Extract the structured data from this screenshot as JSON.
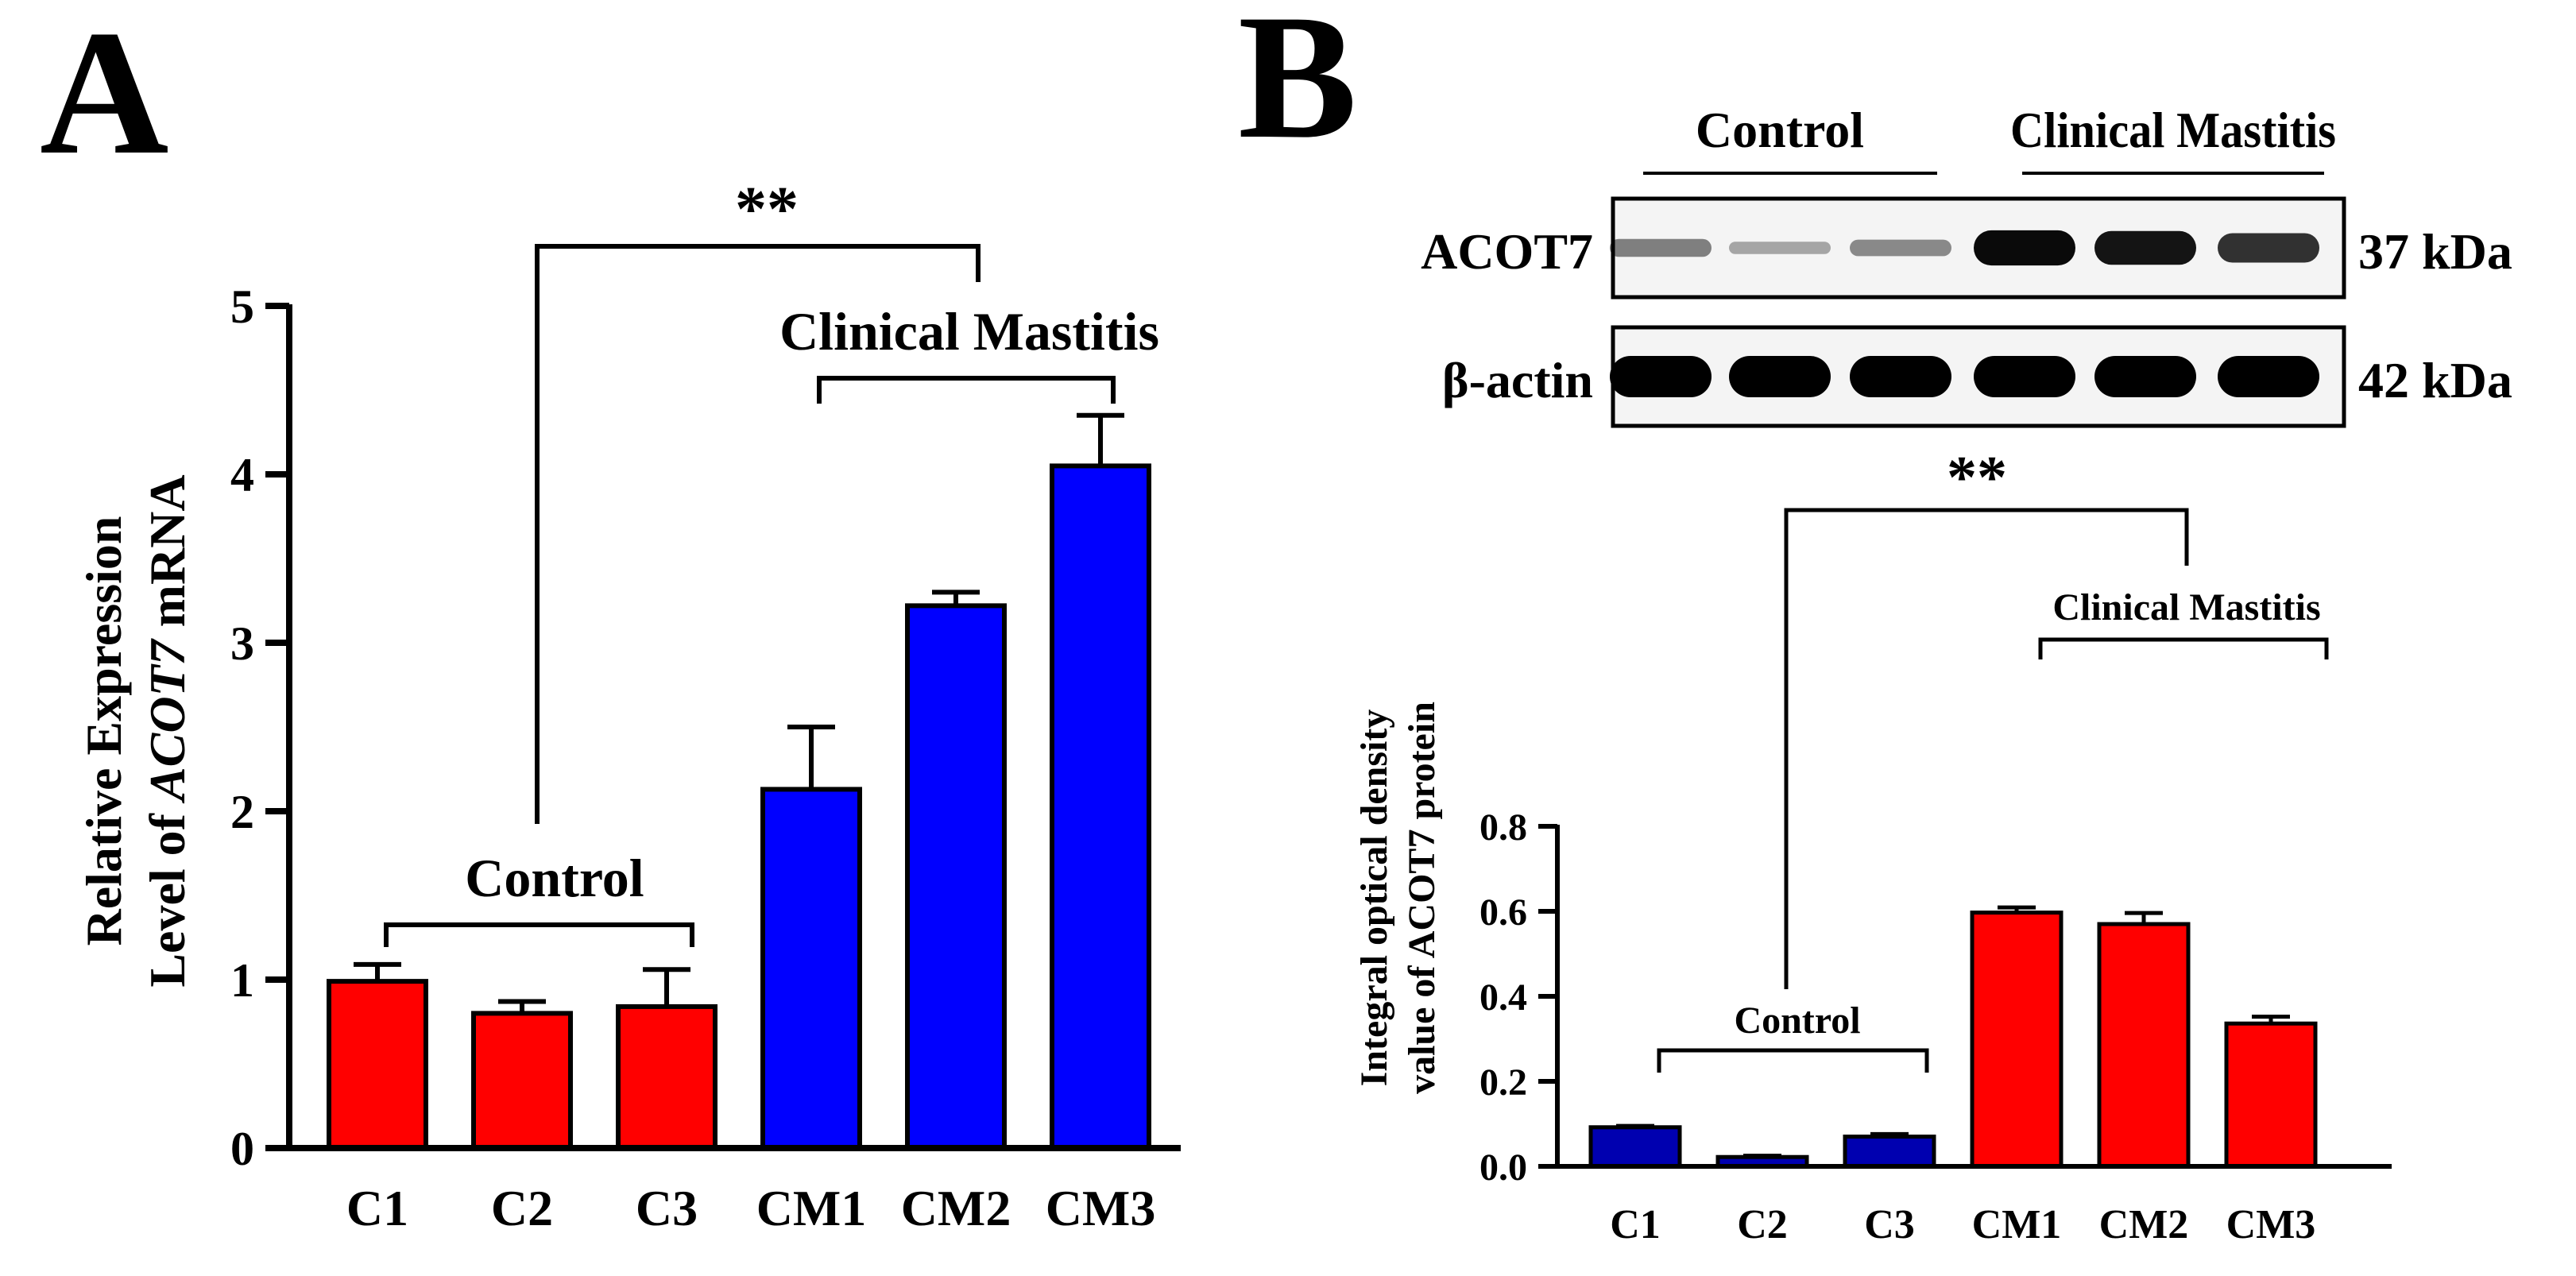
{
  "panel_a_letter": "A",
  "panel_b_letter": "B",
  "significance": "**",
  "blot": {
    "group_labels": [
      "Control",
      "Clinical Mastitis"
    ],
    "bands": [
      {
        "protein": "ACOT7",
        "size": "37 kDa",
        "intensity": [
          0.35,
          0.15,
          0.3,
          0.95,
          0.9,
          0.75
        ]
      },
      {
        "protein": "β-actin",
        "size": "42 kDa",
        "intensity": [
          1.0,
          1.0,
          1.0,
          1.0,
          1.0,
          1.0
        ]
      }
    ]
  },
  "colors": {
    "red": "#ff0000",
    "blue": "#0000ff",
    "dark_blue": "#0000b0",
    "axis": "#000000"
  },
  "chart_data": [
    {
      "type": "bar",
      "categories": [
        "C1",
        "C2",
        "C3",
        "CM1",
        "CM2",
        "CM3"
      ],
      "values": [
        0.99,
        0.8,
        0.84,
        2.13,
        3.22,
        4.05
      ],
      "errors": [
        0.1,
        0.07,
        0.22,
        0.37,
        0.08,
        0.3
      ],
      "bar_colors": [
        "#ff0000",
        "#ff0000",
        "#ff0000",
        "#0000ff",
        "#0000ff",
        "#0000ff"
      ],
      "ylabel_line1": "Relative Expression",
      "ylabel_line2_prefix": "Level of ",
      "ylabel_line2_italic": "ACOT7",
      "ylabel_line2_suffix": " mRNA",
      "ylim": [
        0,
        5
      ],
      "yticks": [
        "0",
        "1",
        "2",
        "3",
        "4",
        "5"
      ],
      "group_labels": [
        "Control",
        "Clinical Mastitis"
      ],
      "significance": "**"
    },
    {
      "type": "bar",
      "categories": [
        "C1",
        "C2",
        "C3",
        "CM1",
        "CM2",
        "CM3"
      ],
      "values": [
        0.092,
        0.022,
        0.07,
        0.597,
        0.57,
        0.336
      ],
      "errors": [
        0.003,
        0.003,
        0.006,
        0.012,
        0.026,
        0.016
      ],
      "bar_colors": [
        "#0000b0",
        "#0000b0",
        "#0000b0",
        "#ff0000",
        "#ff0000",
        "#ff0000"
      ],
      "ylabel_line1": "Integral optical density",
      "ylabel_line2": "value of ACOT7 protein",
      "ylim": [
        0,
        0.8
      ],
      "yticks": [
        "0.0",
        "0.2",
        "0.4",
        "0.6",
        "0.8"
      ],
      "group_labels": [
        "Control",
        "Clinical Mastitis"
      ],
      "significance": "**"
    }
  ]
}
